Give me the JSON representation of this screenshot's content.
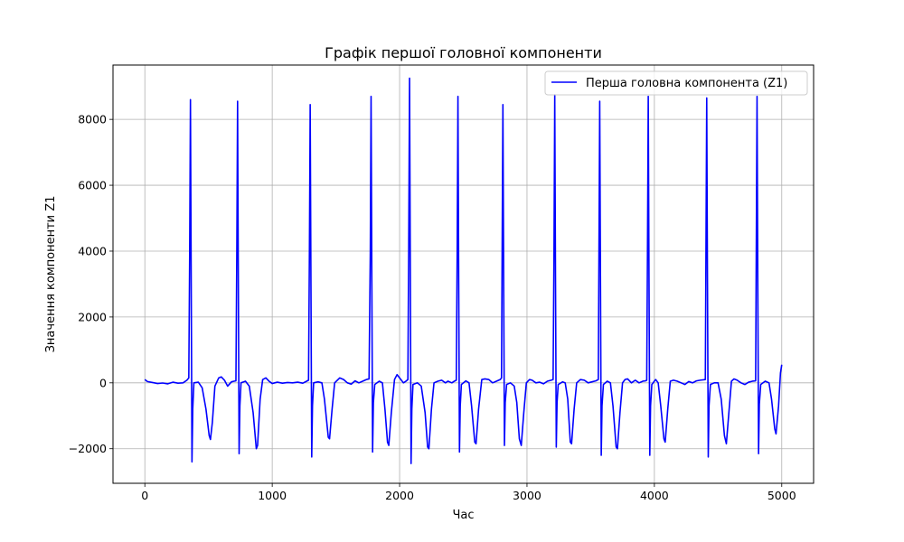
{
  "chart_data": {
    "type": "line",
    "title": "Графік першої головної компоненти",
    "xlabel": "Час",
    "ylabel": "Значення компоненти Z1",
    "xlim": [
      -250,
      5250
    ],
    "ylim": [
      -3050,
      9650
    ],
    "xticks": [
      0,
      1000,
      2000,
      3000,
      4000,
      5000
    ],
    "yticks": [
      -2000,
      0,
      2000,
      4000,
      6000,
      8000
    ],
    "xtick_labels": [
      "0",
      "1000",
      "2000",
      "3000",
      "4000",
      "5000"
    ],
    "ytick_labels": [
      "−2000",
      "0",
      "2000",
      "4000",
      "6000",
      "8000"
    ],
    "grid": true,
    "legend_position": "top-right",
    "colors": {
      "series": "#0000ff",
      "grid": "#b0b0b0",
      "axes": "#000000"
    },
    "series": [
      {
        "name": "Перша головна компонента (Z1)",
        "points": [
          [
            0,
            100
          ],
          [
            20,
            40
          ],
          [
            60,
            10
          ],
          [
            100,
            -20
          ],
          [
            140,
            -5
          ],
          [
            180,
            -30
          ],
          [
            220,
            20
          ],
          [
            260,
            -10
          ],
          [
            300,
            0
          ],
          [
            330,
            80
          ],
          [
            345,
            150
          ],
          [
            352,
            4000
          ],
          [
            358,
            8600
          ],
          [
            364,
            3000
          ],
          [
            370,
            -2400
          ],
          [
            376,
            -800
          ],
          [
            385,
            0
          ],
          [
            420,
            20
          ],
          [
            450,
            -150
          ],
          [
            480,
            -800
          ],
          [
            505,
            -1600
          ],
          [
            515,
            -1720
          ],
          [
            530,
            -1200
          ],
          [
            550,
            -100
          ],
          [
            580,
            150
          ],
          [
            600,
            180
          ],
          [
            625,
            80
          ],
          [
            650,
            -100
          ],
          [
            680,
            30
          ],
          [
            700,
            50
          ],
          [
            715,
            60
          ],
          [
            722,
            4000
          ],
          [
            728,
            8550
          ],
          [
            734,
            3000
          ],
          [
            740,
            -2150
          ],
          [
            746,
            -700
          ],
          [
            755,
            0
          ],
          [
            790,
            50
          ],
          [
            820,
            -100
          ],
          [
            850,
            -900
          ],
          [
            875,
            -2000
          ],
          [
            885,
            -1900
          ],
          [
            905,
            -500
          ],
          [
            925,
            100
          ],
          [
            950,
            150
          ],
          [
            975,
            50
          ],
          [
            1000,
            -20
          ],
          [
            1040,
            20
          ],
          [
            1080,
            -10
          ],
          [
            1120,
            10
          ],
          [
            1160,
            0
          ],
          [
            1200,
            20
          ],
          [
            1240,
            -10
          ],
          [
            1270,
            50
          ],
          [
            1285,
            80
          ],
          [
            1292,
            4000
          ],
          [
            1298,
            8450
          ],
          [
            1304,
            3000
          ],
          [
            1310,
            -2250
          ],
          [
            1316,
            -700
          ],
          [
            1325,
            0
          ],
          [
            1360,
            30
          ],
          [
            1390,
            0
          ],
          [
            1410,
            -500
          ],
          [
            1440,
            -1650
          ],
          [
            1450,
            -1700
          ],
          [
            1470,
            -800
          ],
          [
            1490,
            0
          ],
          [
            1530,
            150
          ],
          [
            1560,
            100
          ],
          [
            1590,
            0
          ],
          [
            1620,
            -40
          ],
          [
            1650,
            60
          ],
          [
            1680,
            0
          ],
          [
            1710,
            50
          ],
          [
            1740,
            100
          ],
          [
            1760,
            120
          ],
          [
            1770,
            4000
          ],
          [
            1776,
            8700
          ],
          [
            1782,
            3000
          ],
          [
            1788,
            -2100
          ],
          [
            1794,
            -600
          ],
          [
            1805,
            -50
          ],
          [
            1840,
            50
          ],
          [
            1865,
            0
          ],
          [
            1885,
            -800
          ],
          [
            1905,
            -1800
          ],
          [
            1915,
            -1900
          ],
          [
            1935,
            -900
          ],
          [
            1960,
            100
          ],
          [
            1980,
            250
          ],
          [
            2000,
            150
          ],
          [
            2030,
            0
          ],
          [
            2050,
            50
          ],
          [
            2065,
            100
          ],
          [
            2072,
            4500
          ],
          [
            2078,
            9250
          ],
          [
            2084,
            3500
          ],
          [
            2090,
            -2450
          ],
          [
            2096,
            -800
          ],
          [
            2105,
            -50
          ],
          [
            2140,
            0
          ],
          [
            2170,
            -100
          ],
          [
            2200,
            -900
          ],
          [
            2220,
            -1950
          ],
          [
            2230,
            -2000
          ],
          [
            2250,
            -800
          ],
          [
            2270,
            0
          ],
          [
            2300,
            50
          ],
          [
            2330,
            80
          ],
          [
            2360,
            0
          ],
          [
            2380,
            50
          ],
          [
            2410,
            0
          ],
          [
            2430,
            50
          ],
          [
            2445,
            80
          ],
          [
            2452,
            4000
          ],
          [
            2458,
            8700
          ],
          [
            2464,
            3000
          ],
          [
            2470,
            -2100
          ],
          [
            2476,
            -700
          ],
          [
            2485,
            -50
          ],
          [
            2520,
            60
          ],
          [
            2545,
            0
          ],
          [
            2565,
            -700
          ],
          [
            2590,
            -1800
          ],
          [
            2600,
            -1850
          ],
          [
            2620,
            -800
          ],
          [
            2645,
            100
          ],
          [
            2670,
            120
          ],
          [
            2700,
            100
          ],
          [
            2730,
            0
          ],
          [
            2760,
            50
          ],
          [
            2790,
            100
          ],
          [
            2800,
            150
          ],
          [
            2805,
            4000
          ],
          [
            2811,
            8450
          ],
          [
            2817,
            3000
          ],
          [
            2823,
            -1900
          ],
          [
            2829,
            -600
          ],
          [
            2840,
            -50
          ],
          [
            2870,
            0
          ],
          [
            2900,
            -100
          ],
          [
            2920,
            -600
          ],
          [
            2940,
            -1700
          ],
          [
            2955,
            -1900
          ],
          [
            2975,
            -900
          ],
          [
            2995,
            0
          ],
          [
            3020,
            100
          ],
          [
            3040,
            80
          ],
          [
            3070,
            0
          ],
          [
            3100,
            20
          ],
          [
            3130,
            -30
          ],
          [
            3160,
            50
          ],
          [
            3190,
            80
          ],
          [
            3205,
            100
          ],
          [
            3212,
            4000
          ],
          [
            3218,
            8750
          ],
          [
            3224,
            3000
          ],
          [
            3230,
            -1950
          ],
          [
            3236,
            -600
          ],
          [
            3245,
            -50
          ],
          [
            3280,
            30
          ],
          [
            3300,
            0
          ],
          [
            3320,
            -500
          ],
          [
            3340,
            -1800
          ],
          [
            3350,
            -1850
          ],
          [
            3370,
            -800
          ],
          [
            3390,
            0
          ],
          [
            3420,
            100
          ],
          [
            3450,
            80
          ],
          [
            3480,
            0
          ],
          [
            3510,
            30
          ],
          [
            3540,
            60
          ],
          [
            3560,
            100
          ],
          [
            3565,
            4000
          ],
          [
            3571,
            8550
          ],
          [
            3577,
            3000
          ],
          [
            3583,
            -2200
          ],
          [
            3589,
            -700
          ],
          [
            3600,
            -50
          ],
          [
            3630,
            50
          ],
          [
            3655,
            0
          ],
          [
            3675,
            -700
          ],
          [
            3700,
            -1950
          ],
          [
            3710,
            -2000
          ],
          [
            3730,
            -900
          ],
          [
            3750,
            0
          ],
          [
            3770,
            100
          ],
          [
            3790,
            120
          ],
          [
            3820,
            0
          ],
          [
            3850,
            80
          ],
          [
            3880,
            0
          ],
          [
            3910,
            50
          ],
          [
            3930,
            60
          ],
          [
            3940,
            80
          ],
          [
            3946,
            4000
          ],
          [
            3952,
            8700
          ],
          [
            3958,
            3000
          ],
          [
            3964,
            -2200
          ],
          [
            3970,
            -700
          ],
          [
            3980,
            -50
          ],
          [
            4010,
            100
          ],
          [
            4030,
            0
          ],
          [
            4050,
            -700
          ],
          [
            4075,
            -1700
          ],
          [
            4085,
            -1800
          ],
          [
            4105,
            -800
          ],
          [
            4125,
            50
          ],
          [
            4150,
            80
          ],
          [
            4180,
            50
          ],
          [
            4210,
            0
          ],
          [
            4240,
            -50
          ],
          [
            4270,
            40
          ],
          [
            4300,
            0
          ],
          [
            4330,
            60
          ],
          [
            4360,
            80
          ],
          [
            4400,
            100
          ],
          [
            4405,
            4000
          ],
          [
            4411,
            8650
          ],
          [
            4417,
            3000
          ],
          [
            4423,
            -2250
          ],
          [
            4429,
            -700
          ],
          [
            4440,
            -50
          ],
          [
            4470,
            0
          ],
          [
            4500,
            0
          ],
          [
            4525,
            -500
          ],
          [
            4550,
            -1600
          ],
          [
            4565,
            -1850
          ],
          [
            4585,
            -900
          ],
          [
            4605,
            50
          ],
          [
            4625,
            120
          ],
          [
            4650,
            80
          ],
          [
            4680,
            0
          ],
          [
            4710,
            -50
          ],
          [
            4740,
            20
          ],
          [
            4770,
            50
          ],
          [
            4795,
            60
          ],
          [
            4800,
            4000
          ],
          [
            4806,
            8700
          ],
          [
            4812,
            3000
          ],
          [
            4818,
            -2150
          ],
          [
            4824,
            -650
          ],
          [
            4835,
            -50
          ],
          [
            4870,
            50
          ],
          [
            4900,
            0
          ],
          [
            4920,
            -500
          ],
          [
            4945,
            -1400
          ],
          [
            4955,
            -1550
          ],
          [
            4975,
            -700
          ],
          [
            4990,
            300
          ],
          [
            5000,
            550
          ]
        ]
      }
    ]
  }
}
